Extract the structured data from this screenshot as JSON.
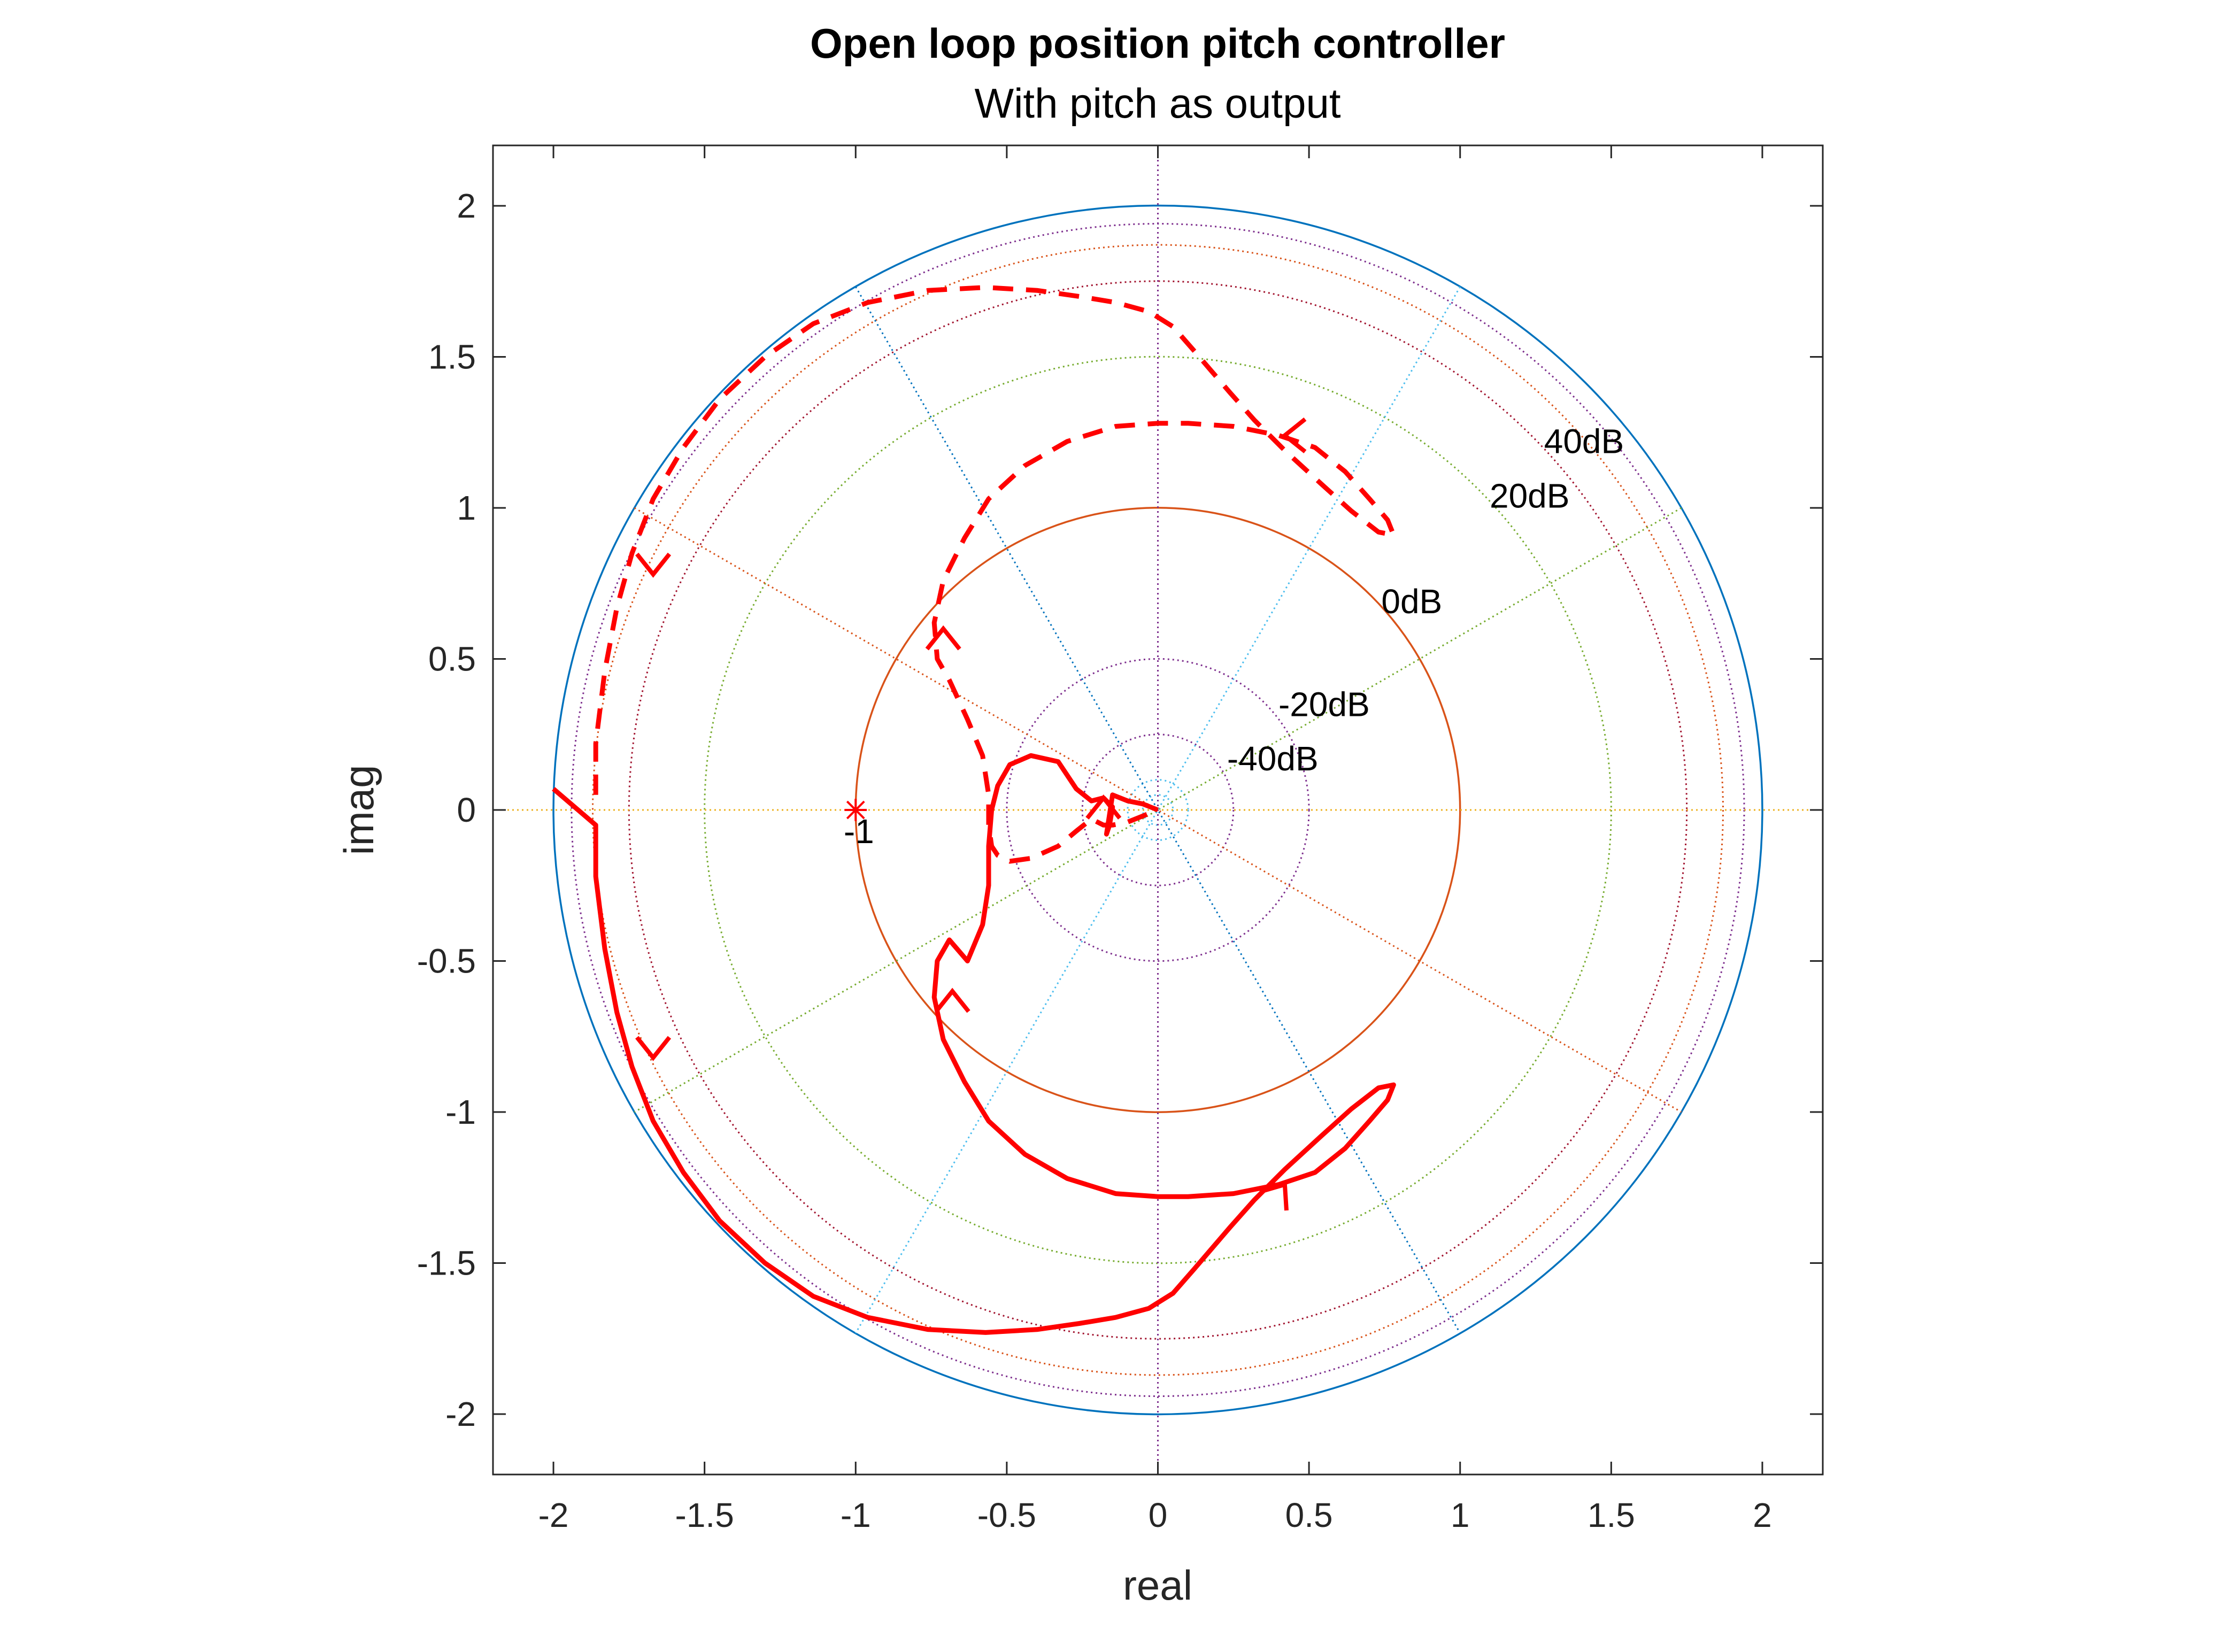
{
  "chart_data": {
    "type": "line",
    "title": "Open loop position pitch controller",
    "subtitle": "With pitch as output",
    "xlabel": "real",
    "ylabel": "imag",
    "xlim": [
      -2.2,
      2.2
    ],
    "ylim": [
      -2.2,
      2.2
    ],
    "xticks": [
      -2,
      -1.5,
      -1,
      -0.5,
      0,
      0.5,
      1,
      1.5,
      2
    ],
    "yticks": [
      -2,
      -1.5,
      -1,
      -0.5,
      0,
      0.5,
      1,
      1.5,
      2
    ],
    "xtick_labels": [
      "-2",
      "-1.5",
      "-1",
      "-0.5",
      "0",
      "0.5",
      "1",
      "1.5",
      "2"
    ],
    "ytick_labels": [
      "-2",
      "-1.5",
      "-1",
      "-0.5",
      "0",
      "0.5",
      "1",
      "1.5",
      "2"
    ],
    "grid": "log-polar",
    "magnitude_circles": [
      {
        "radius": 0.1,
        "label": "-40dB",
        "color": "#4DBEEE"
      },
      {
        "radius": 0.5,
        "label": "-20dB",
        "color": "#7E2F8E"
      },
      {
        "radius": 1.0,
        "label": "0dB",
        "color": "#D95319"
      },
      {
        "radius": 1.5,
        "label": "20dB",
        "color": "#77AC30"
      },
      {
        "radius": 1.75,
        "label": "",
        "color": "#A2142F"
      },
      {
        "radius": 1.87,
        "label": "",
        "color": "#D95319"
      },
      {
        "radius": 1.94,
        "label": "",
        "color": "#7E2F8E"
      },
      {
        "radius": 2.0,
        "label": "40dB",
        "color": "#0072BD"
      }
    ],
    "extra_circles": [
      {
        "radius": 0.05,
        "color": "#4DBEEE"
      },
      {
        "radius": 0.25,
        "color": "#7E2F8E"
      }
    ],
    "angle_lines_deg": [
      0,
      30,
      60,
      90,
      120,
      150
    ],
    "angle_line_colors": [
      "#EDB120",
      "#77AC30",
      "#4DBEEE",
      "#7E2F8E",
      "#0072BD",
      "#D95319"
    ],
    "critical_point": {
      "x": -1,
      "y": 0,
      "label": "-1",
      "color": "#ff0000"
    },
    "series": [
      {
        "style": "solid",
        "color": "#ff0000",
        "x": [
          -2.0,
          -1.86,
          -1.86,
          -1.83,
          -1.79,
          -1.74,
          -1.67,
          -1.57,
          -1.45,
          -1.3,
          -1.14,
          -0.96,
          -0.76,
          -0.57,
          -0.4,
          -0.26,
          -0.14,
          -0.03,
          0.05,
          0.12,
          0.18,
          0.24,
          0.32,
          0.42,
          0.54,
          0.64,
          0.73,
          0.78,
          0.76,
          0.7,
          0.62,
          0.52,
          0.4,
          0.25,
          0.1,
          0.0,
          -0.14,
          -0.3,
          -0.44,
          -0.56,
          -0.64,
          -0.71,
          -0.74,
          -0.73,
          -0.69,
          -0.63,
          -0.58,
          -0.56,
          -0.56,
          -0.55,
          -0.53,
          -0.49,
          -0.42,
          -0.33,
          -0.27,
          -0.22,
          -0.18,
          -0.15,
          -0.16,
          -0.17,
          -0.15,
          -0.1,
          -0.05,
          0.0
        ],
        "y": [
          0.07,
          -0.05,
          -0.22,
          -0.46,
          -0.67,
          -0.85,
          -1.03,
          -1.2,
          -1.36,
          -1.5,
          -1.61,
          -1.68,
          -1.72,
          -1.73,
          -1.72,
          -1.7,
          -1.68,
          -1.65,
          -1.6,
          -1.52,
          -1.45,
          -1.38,
          -1.29,
          -1.19,
          -1.08,
          -0.99,
          -0.92,
          -0.91,
          -0.96,
          -1.03,
          -1.12,
          -1.2,
          -1.24,
          -1.27,
          -1.28,
          -1.28,
          -1.27,
          -1.22,
          -1.14,
          -1.03,
          -0.9,
          -0.76,
          -0.62,
          -0.5,
          -0.43,
          -0.5,
          -0.38,
          -0.25,
          -0.12,
          0.0,
          0.08,
          0.15,
          0.18,
          0.16,
          0.07,
          0.03,
          0.04,
          0.01,
          -0.05,
          -0.08,
          0.05,
          0.03,
          0.02,
          0.0
        ]
      },
      {
        "style": "dashed",
        "color": "#ff0000",
        "x": [
          -1.86,
          -1.86,
          -1.83,
          -1.79,
          -1.74,
          -1.67,
          -1.57,
          -1.45,
          -1.3,
          -1.14,
          -0.96,
          -0.76,
          -0.57,
          -0.4,
          -0.26,
          -0.14,
          -0.03,
          0.05,
          0.12,
          0.18,
          0.24,
          0.32,
          0.42,
          0.54,
          0.64,
          0.73,
          0.78,
          0.76,
          0.7,
          0.62,
          0.52,
          0.4,
          0.25,
          0.1,
          0.0,
          -0.14,
          -0.3,
          -0.44,
          -0.56,
          -0.64,
          -0.71,
          -0.74,
          -0.73,
          -0.69,
          -0.63,
          -0.58,
          -0.56,
          -0.56,
          -0.55,
          -0.53,
          -0.49,
          -0.42,
          -0.33,
          -0.27,
          -0.22,
          -0.18,
          -0.15,
          -0.1,
          -0.05,
          0.0
        ],
        "y": [
          0.05,
          0.22,
          0.46,
          0.67,
          0.85,
          1.03,
          1.2,
          1.36,
          1.5,
          1.61,
          1.68,
          1.72,
          1.73,
          1.72,
          1.7,
          1.68,
          1.65,
          1.6,
          1.52,
          1.45,
          1.38,
          1.29,
          1.19,
          1.08,
          0.99,
          0.92,
          0.91,
          0.96,
          1.03,
          1.12,
          1.2,
          1.24,
          1.27,
          1.28,
          1.28,
          1.27,
          1.22,
          1.14,
          1.03,
          0.9,
          0.76,
          0.62,
          0.5,
          0.43,
          0.3,
          0.18,
          0.05,
          -0.05,
          -0.12,
          -0.15,
          -0.17,
          -0.16,
          -0.12,
          -0.07,
          -0.03,
          -0.05,
          -0.05,
          -0.04,
          -0.02,
          0.0
        ]
      }
    ],
    "arrows": [
      {
        "x": -1.67,
        "y": 0.78,
        "direction": "down"
      },
      {
        "x": -0.71,
        "y": 0.6,
        "direction": "up"
      },
      {
        "x": 0.42,
        "y": 1.24,
        "direction": "left"
      },
      {
        "x": -0.18,
        "y": 0.04,
        "direction": "up"
      },
      {
        "x": -1.67,
        "y": -0.82,
        "direction": "down"
      },
      {
        "x": -0.68,
        "y": -0.6,
        "direction": "up"
      },
      {
        "x": 0.42,
        "y": -1.24,
        "direction": "upright"
      }
    ]
  }
}
